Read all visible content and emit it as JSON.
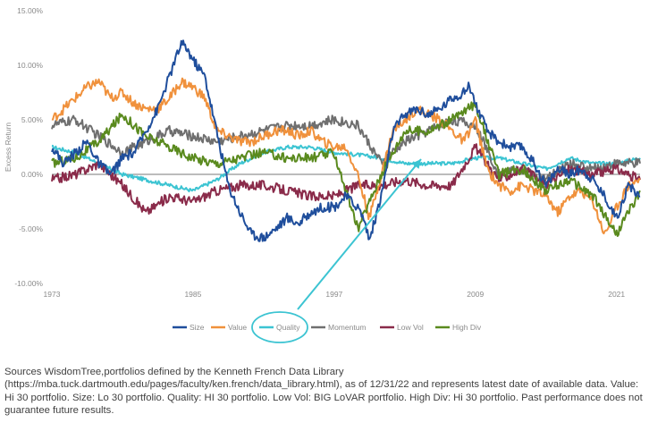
{
  "chart_data": {
    "type": "line",
    "title": "",
    "xlabel": "",
    "ylabel": "Excess Return",
    "x_range": [
      1973,
      2023
    ],
    "x_ticks": [
      "1973",
      "1985",
      "1997",
      "2009",
      "2021"
    ],
    "y_ticks": [
      "15.00%",
      "10.00%",
      "5.00%",
      "0.00%",
      "-5.00%",
      "-10.00%"
    ],
    "ylim": [
      -10,
      15
    ],
    "grid": false,
    "legend_position": "bottom",
    "series": [
      {
        "name": "Size",
        "color": "#1f4e9c",
        "x": [
          1973,
          1974,
          1975,
          1976,
          1977,
          1978,
          1979,
          1980,
          1981,
          1982,
          1983,
          1984,
          1984.5,
          1985,
          1986,
          1987,
          1988,
          1989,
          1990,
          1991,
          1992,
          1993,
          1994,
          1995,
          1996,
          1997,
          1998,
          1999,
          1999.5,
          2000,
          2001,
          2002,
          2003,
          2004,
          2005,
          2006,
          2007,
          2008,
          2008.5,
          2009,
          2010,
          2011,
          2012,
          2013,
          2014,
          2015,
          2016,
          2017,
          2018,
          2019,
          2020,
          2021,
          2022,
          2023
        ],
        "y": [
          2.5,
          1.0,
          2.0,
          3.0,
          1.0,
          0.0,
          1.5,
          2.0,
          4.0,
          6.0,
          9.0,
          12.0,
          11.5,
          10.5,
          9.0,
          4.0,
          -1.0,
          -3.5,
          -5.5,
          -5.8,
          -5.0,
          -4.0,
          -4.5,
          -3.5,
          -3.0,
          -3.0,
          -2.0,
          -3.0,
          -4.0,
          -6.0,
          -2.0,
          4.0,
          5.5,
          6.0,
          5.5,
          6.0,
          7.0,
          7.5,
          8.2,
          6.5,
          4.0,
          3.0,
          2.5,
          2.5,
          1.0,
          -1.0,
          0.5,
          0.0,
          0.5,
          -0.5,
          -2.0,
          -4.0,
          -1.0,
          -2.0
        ]
      },
      {
        "name": "Value",
        "color": "#f0913c",
        "x": [
          1973,
          1974,
          1975,
          1976,
          1977,
          1978,
          1979,
          1980,
          1981,
          1982,
          1983,
          1984,
          1985,
          1986,
          1987,
          1988,
          1989,
          1990,
          1991,
          1992,
          1993,
          1994,
          1995,
          1996,
          1997,
          1998,
          1999,
          2000,
          2001,
          2002,
          2003,
          2004,
          2005,
          2006,
          2007,
          2008,
          2009,
          2010,
          2011,
          2012,
          2013,
          2014,
          2015,
          2016,
          2017,
          2018,
          2019,
          2020,
          2021,
          2022,
          2023
        ],
        "y": [
          5.0,
          6.0,
          7.0,
          8.0,
          8.5,
          7.0,
          7.5,
          6.5,
          6.0,
          6.0,
          7.0,
          8.5,
          8.0,
          7.0,
          4.0,
          3.5,
          3.0,
          3.0,
          3.5,
          4.0,
          4.0,
          3.5,
          4.0,
          3.0,
          2.5,
          2.5,
          0.0,
          -4.0,
          0.0,
          4.0,
          5.0,
          6.0,
          5.5,
          5.0,
          4.0,
          3.0,
          5.0,
          0.5,
          -1.0,
          -1.5,
          -1.0,
          -1.5,
          -2.0,
          -3.5,
          -2.0,
          -1.5,
          -2.5,
          -5.5,
          -3.0,
          -1.0,
          -0.5
        ]
      },
      {
        "name": "Quality",
        "color": "#3cc4d2",
        "x": [
          1973,
          1975,
          1977,
          1979,
          1981,
          1983,
          1985,
          1987,
          1989,
          1991,
          1993,
          1995,
          1997,
          1999,
          2001,
          2003,
          2005,
          2007,
          2009,
          2011,
          2013,
          2015,
          2017,
          2019,
          2021,
          2023
        ],
        "y": [
          2.5,
          2.0,
          1.0,
          0.0,
          -0.5,
          -1.0,
          -1.5,
          -0.5,
          1.0,
          2.0,
          2.5,
          2.5,
          2.0,
          1.8,
          1.5,
          1.0,
          1.0,
          1.0,
          1.5,
          1.5,
          1.0,
          0.5,
          1.5,
          1.0,
          1.0,
          1.5
        ]
      },
      {
        "name": "Momentum",
        "color": "#6f6f6f",
        "x": [
          1973,
          1975,
          1977,
          1979,
          1981,
          1983,
          1985,
          1987,
          1989,
          1991,
          1993,
          1995,
          1997,
          1999,
          2001,
          2003,
          2005,
          2007,
          2009,
          2011,
          2013,
          2015,
          2017,
          2019,
          2021,
          2023
        ],
        "y": [
          4.5,
          5.0,
          3.5,
          2.0,
          3.0,
          4.0,
          3.5,
          3.0,
          3.5,
          4.0,
          4.5,
          4.5,
          5.0,
          4.5,
          1.0,
          3.0,
          4.0,
          5.0,
          4.5,
          0.0,
          0.5,
          -0.5,
          1.0,
          0.5,
          1.0,
          1.0
        ]
      },
      {
        "name": "Low Vol",
        "color": "#8a2b4a",
        "x": [
          1973,
          1975,
          1977,
          1979,
          1981,
          1983,
          1985,
          1987,
          1989,
          1991,
          1993,
          1995,
          1997,
          1999,
          2001,
          2003,
          2005,
          2007,
          2009,
          2011,
          2013,
          2015,
          2017,
          2019,
          2021,
          2023
        ],
        "y": [
          -0.5,
          0.0,
          1.0,
          -1.0,
          -3.5,
          -2.0,
          -2.5,
          -1.5,
          -1.0,
          -1.0,
          -1.5,
          -2.0,
          -2.0,
          -1.0,
          -1.0,
          -0.5,
          -1.0,
          -1.0,
          2.5,
          -0.5,
          0.5,
          -1.0,
          0.5,
          0.0,
          0.5,
          -0.5
        ]
      },
      {
        "name": "High Div",
        "color": "#5a8a1e",
        "x": [
          1973,
          1975,
          1977,
          1979,
          1981,
          1983,
          1985,
          1987,
          1989,
          1991,
          1993,
          1995,
          1997,
          1999,
          2001,
          2003,
          2005,
          2007,
          2009,
          2011,
          2013,
          2015,
          2017,
          2019,
          2021,
          2023
        ],
        "y": [
          1.0,
          1.5,
          3.0,
          5.5,
          3.5,
          2.5,
          1.5,
          1.0,
          1.5,
          2.0,
          1.5,
          1.5,
          2.0,
          -5.0,
          0.0,
          4.0,
          4.0,
          5.0,
          6.5,
          0.0,
          0.5,
          -1.5,
          -0.5,
          -2.0,
          -5.5,
          -1.5
        ]
      }
    ]
  },
  "footnote": "Sources WisdomTree,portfolios defined by the Kenneth French Data Library (https://mba.tuck.dartmouth.edu/pages/faculty/ken.french/data_library.html), as of 12/31/22 and represents latest date of available data. Value: Hi 30 portfolio. Size: Lo 30 portfolio. Quality: HI 30 portfolio. Low Vol: BIG LoVAR portfolio. High Div: Hi 30 portfolio. Past performance does not guarantee future results.",
  "highlight": {
    "series": "Quality",
    "color": "#3cc4d2"
  }
}
